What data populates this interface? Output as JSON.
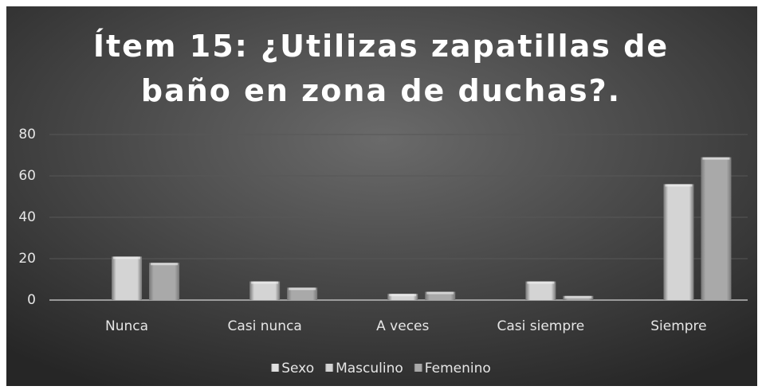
{
  "chart_data": {
    "type": "bar",
    "title": "Ítem 15: ¿Utilizas zapatillas de baño en zona de duchas?.",
    "categories": [
      "Nunca",
      "Casi nunca",
      "A veces",
      "Casi siempre",
      "Siempre"
    ],
    "series": [
      {
        "name": "Sexo",
        "color": "#e0e0e0",
        "values": [
          null,
          null,
          null,
          null,
          null
        ]
      },
      {
        "name": "Masculino",
        "color": "#d4d4d4",
        "values": [
          21,
          9,
          3,
          9,
          56
        ]
      },
      {
        "name": "Femenino",
        "color": "#a9a9a9",
        "values": [
          18,
          6,
          4,
          2,
          69
        ]
      }
    ],
    "ylim": [
      0,
      80
    ],
    "yticks": [
      0,
      20,
      40,
      60,
      80
    ],
    "grid": true,
    "legend": "bottom"
  }
}
